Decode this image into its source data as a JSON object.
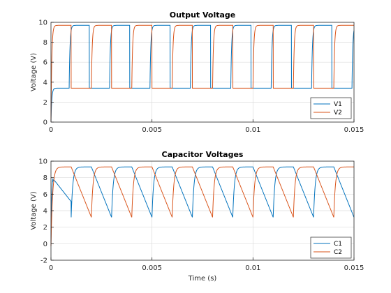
{
  "chart_data": [
    {
      "type": "line",
      "title": "Output Voltage",
      "xlabel": "",
      "ylabel": "Voltage (V)",
      "xlim": [
        0,
        0.015
      ],
      "ylim": [
        0,
        10
      ],
      "xticks": [
        0,
        0.005,
        0.01,
        0.015
      ],
      "xtick_labels": [
        "0",
        "0.005",
        "0.01",
        "0.015"
      ],
      "yticks": [
        0,
        2,
        4,
        6,
        8,
        10
      ],
      "ytick_labels": [
        "0",
        "2",
        "4",
        "6",
        "8",
        "10"
      ],
      "grid": true,
      "legend": "bottom-right",
      "period": 0.002,
      "series": [
        {
          "name": "V1",
          "color": "#0072BD",
          "waveform": "square",
          "low": 3.4,
          "high": 9.7,
          "first_high_start": 0.0009,
          "high_duration": 0.001,
          "startup_end": 0.0003,
          "tau": 4e-05
        },
        {
          "name": "V2",
          "color": "#D95319",
          "waveform": "square",
          "low": 3.4,
          "high": 9.7,
          "first_high_start": 0.0,
          "high_duration": 0.001,
          "startup_end": 0.0003,
          "tau": 4e-05
        }
      ]
    },
    {
      "type": "line",
      "title": "Capacitor Voltages",
      "xlabel": "Time (s)",
      "ylabel": "Voltage (V)",
      "xlim": [
        0,
        0.015
      ],
      "ylim": [
        -2,
        10
      ],
      "xticks": [
        0,
        0.005,
        0.01,
        0.015
      ],
      "xtick_labels": [
        "0",
        "0.005",
        "0.01",
        "0.015"
      ],
      "yticks": [
        -2,
        0,
        2,
        4,
        6,
        8,
        10
      ],
      "ytick_labels": [
        "-2",
        "0",
        "2",
        "4",
        "6",
        "8",
        "10"
      ],
      "grid": true,
      "legend": "bottom-right",
      "period": 0.002,
      "series": [
        {
          "name": "C1",
          "color": "#0072BD",
          "waveform": "sawtooth",
          "max": 9.3,
          "min": 3.2,
          "first_charge_start": 0.001,
          "charge_duration": 0.001,
          "tau": 8e-05
        },
        {
          "name": "C2",
          "color": "#D95319",
          "waveform": "sawtooth",
          "max": 9.3,
          "min": 3.2,
          "first_charge_start": 0.0,
          "charge_duration": 0.001,
          "tau": 8e-05
        }
      ]
    }
  ]
}
